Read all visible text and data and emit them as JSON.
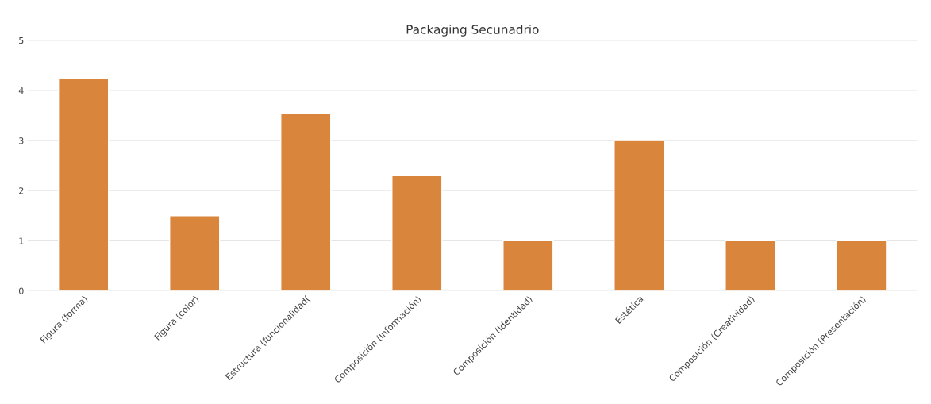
{
  "chart_data": {
    "type": "bar",
    "title": "Packaging Secunadrio",
    "categories": [
      "Figura (forma)",
      "Figura (color)",
      "Estructura (funcionalidad(",
      "Composición (Información)",
      "Composición (Identidad)",
      "Estética",
      "Composición (Creatividad)",
      "Composición (Presentación)"
    ],
    "values": [
      4.25,
      1.5,
      3.55,
      2.3,
      1.0,
      3.0,
      1.0,
      1.0
    ],
    "color": "#d9853b",
    "ylim": [
      0,
      5
    ],
    "yticks": [
      0,
      1,
      2,
      3,
      4,
      5
    ],
    "grid": "y"
  }
}
